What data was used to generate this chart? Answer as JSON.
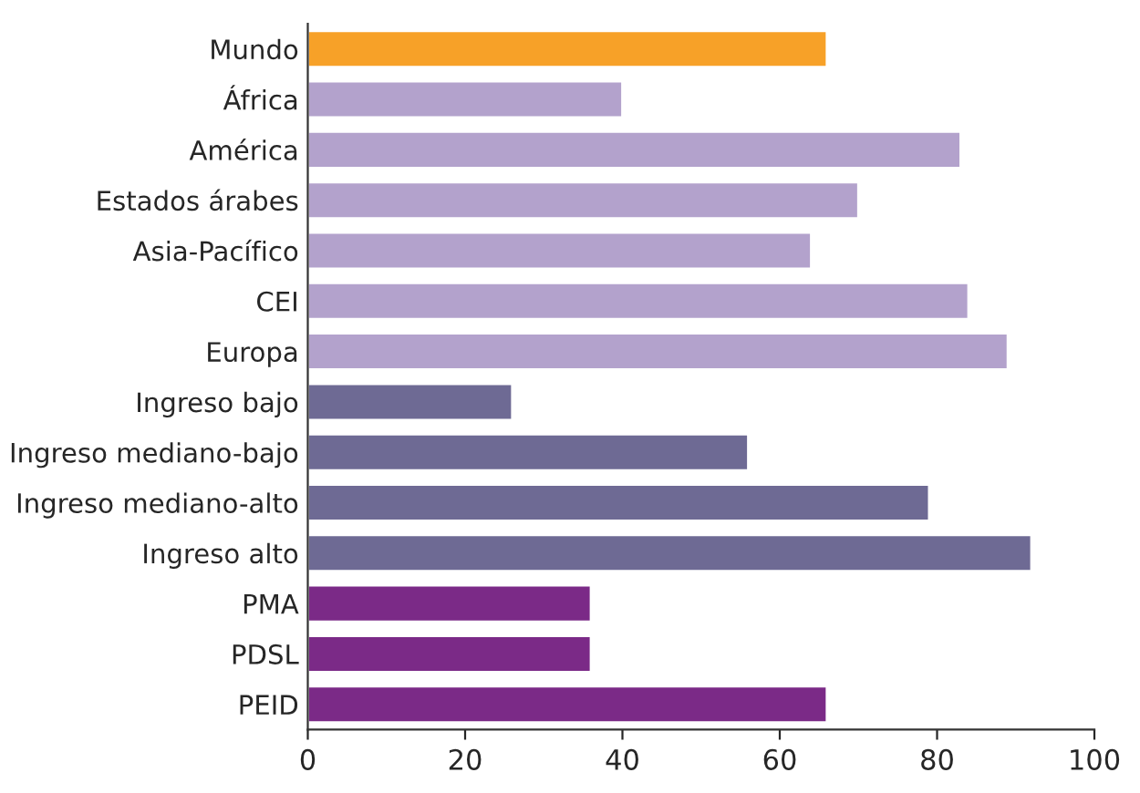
{
  "chart_data": {
    "type": "bar",
    "orientation": "horizontal",
    "categories": [
      "Mundo",
      "África",
      "América",
      "Estados árabes",
      "Asia-Pacífico",
      "CEI",
      "Europa",
      "Ingreso bajo",
      "Ingreso mediano-bajo",
      "Ingreso mediano-alto",
      "Ingreso alto",
      "PMA",
      "PDSL",
      "PEID"
    ],
    "values": [
      66,
      40,
      83,
      70,
      64,
      84,
      89,
      26,
      56,
      79,
      92,
      36,
      36,
      66
    ],
    "colors": [
      "#f7a128",
      "#b3a2cc",
      "#b3a2cc",
      "#b3a2cc",
      "#b3a2cc",
      "#b3a2cc",
      "#b3a2cc",
      "#6e6a94",
      "#6e6a94",
      "#6e6a94",
      "#6e6a94",
      "#7b2a87",
      "#7b2a87",
      "#7b2a87"
    ],
    "xlim": [
      0,
      100
    ],
    "xticks": [
      0,
      20,
      40,
      60,
      80,
      100
    ],
    "grid": false,
    "legend": false
  }
}
